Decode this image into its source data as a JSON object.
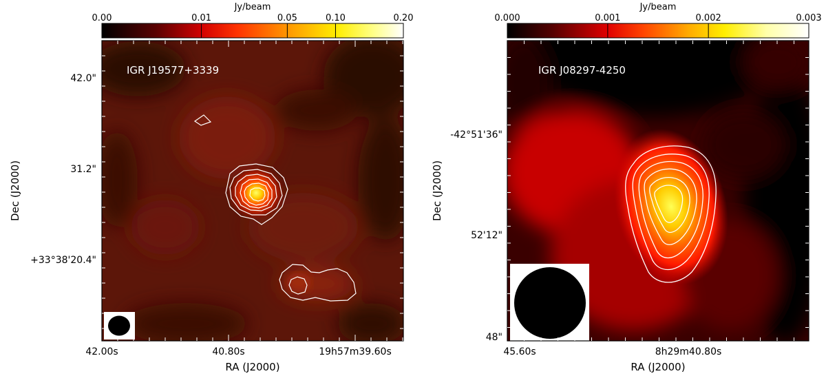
{
  "chart_data": [
    {
      "type": "heatmap",
      "source_label": "IGR J19577+3339",
      "colorbar": {
        "unit": "Jy/beam",
        "ticks": [
          "0.00",
          "0.01",
          "0.05",
          "0.10",
          "0.20"
        ],
        "tick_positions": [
          0,
          0.33,
          0.615,
          0.775,
          1
        ]
      },
      "xlabel": "RA (J2000)",
      "ylabel": "Dec (J2000)",
      "x_ticks": [
        "42.00s",
        "40.80s",
        "19h57m39.60s"
      ],
      "y_ticks": [
        "42.0\"",
        "31.2\"",
        "+33°38'20.4\""
      ],
      "contour_color": "#ffffff",
      "colormap": "hot"
    },
    {
      "type": "heatmap",
      "source_label": "IGR J08297-4250",
      "colorbar": {
        "unit": "Jy/beam",
        "ticks": [
          "0.000",
          "0.001",
          "0.002",
          "0.003"
        ],
        "tick_positions": [
          0,
          0.333,
          0.667,
          1
        ]
      },
      "xlabel": "RA (J2000)",
      "ylabel": "Dec (J2000)",
      "x_ticks": [
        "45.60s",
        "8h29m40.80s"
      ],
      "y_ticks": [
        "-42°51'36\"",
        "52'12\"",
        "48\""
      ],
      "contour_color": "#ffffff",
      "colormap": "hot"
    }
  ]
}
